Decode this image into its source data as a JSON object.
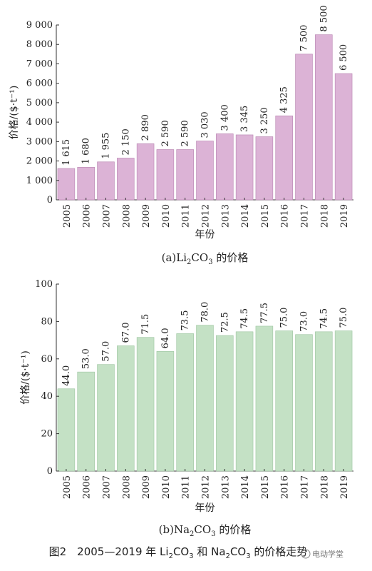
{
  "colors": {
    "bar_a": "#dcb3d6",
    "bar_a_stroke": "#b783b0",
    "bar_b": "#c4e1c5",
    "bar_b_stroke": "#9cc49f"
  },
  "chart_data": [
    {
      "type": "bar",
      "categories": [
        "2005",
        "2006",
        "2007",
        "2008",
        "2009",
        "2010",
        "2011",
        "2012",
        "2013",
        "2014",
        "2015",
        "2016",
        "2017",
        "2018",
        "2019"
      ],
      "values": [
        1615,
        1680,
        1955,
        2150,
        2890,
        2590,
        2590,
        3030,
        3400,
        3345,
        3250,
        4325,
        7500,
        8500,
        6500
      ],
      "data_labels": [
        "1 615",
        "1 680",
        "1 955",
        "2 150",
        "2 890",
        "2 590",
        "2 590",
        "3 030",
        "3 400",
        "3 345",
        "3 250",
        "4 325",
        "7 500",
        "8 500",
        "6 500"
      ],
      "yticks": [
        "0",
        "1 000",
        "2 000",
        "3 000",
        "4 000",
        "5 000",
        "6 000",
        "7 000",
        "8 000",
        "9 000"
      ],
      "ylim": [
        0,
        9000
      ],
      "xlabel": "年份",
      "ylabel": "价格/($·t⁻¹)",
      "caption_prefix": "(a)Li",
      "caption_sub1": "2",
      "caption_mid": "CO",
      "caption_sub2": "3",
      "caption_suffix": " 的价格"
    },
    {
      "type": "bar",
      "categories": [
        "2005",
        "2006",
        "2007",
        "2008",
        "2009",
        "2010",
        "2011",
        "2012",
        "2013",
        "2014",
        "2015",
        "2016",
        "2017",
        "2018",
        "2019"
      ],
      "values": [
        44.0,
        53.0,
        57.0,
        67.0,
        71.5,
        64.0,
        73.5,
        78.0,
        72.5,
        74.5,
        77.5,
        75.0,
        73.0,
        74.5,
        75.0
      ],
      "data_labels": [
        "44.0",
        "53.0",
        "57.0",
        "67.0",
        "71.5",
        "64.0",
        "73.5",
        "78.0",
        "72.5",
        "74.5",
        "77.5",
        "75.0",
        "73.0",
        "74.5",
        "75.0"
      ],
      "yticks": [
        "0",
        "20",
        "40",
        "60",
        "80",
        "100"
      ],
      "ylim": [
        0,
        100
      ],
      "xlabel": "年份",
      "ylabel": "价格/($·t⁻¹)",
      "caption_prefix": "(b)Na",
      "caption_sub1": "2",
      "caption_mid": "CO",
      "caption_sub2": "3",
      "caption_suffix": " 的价格"
    }
  ],
  "figure_caption": {
    "prefix": "图2　2005—2019 年 Li",
    "sub1": "2",
    "mid1": "CO",
    "sub2": "3",
    "mid2": " 和 Na",
    "sub3": "2",
    "mid3": "CO",
    "sub4": "3",
    "suffix": " 的价格走势"
  },
  "watermark": "电动学堂"
}
